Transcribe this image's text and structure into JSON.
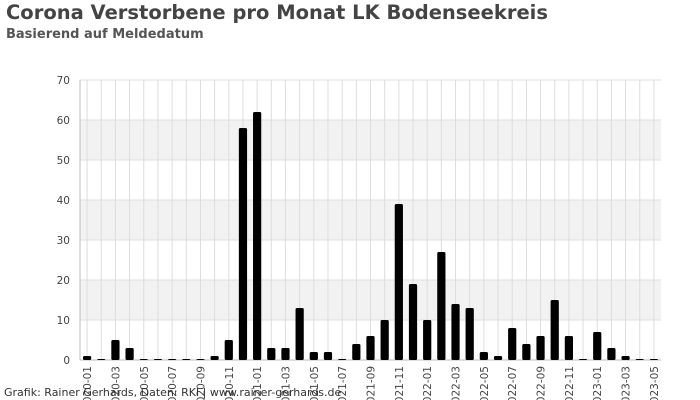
{
  "title": "Corona Verstorbene pro Monat LK Bodenseekreis",
  "subtitle": "Basierend auf Meldedatum",
  "credit": "Grafik: Rainer Gerhards, Daten: RKI | www.rainer-gerhards.de",
  "colors": {
    "bar": "#000000",
    "band": "#f2f2f2",
    "grid": "#dddddd"
  },
  "chart_data": {
    "type": "bar",
    "title": "Corona Verstorbene pro Monat LK Bodenseekreis",
    "subtitle": "Basierend auf Meldedatum",
    "xlabel": "",
    "ylabel": "",
    "ylim": [
      0,
      70
    ],
    "yticks": [
      0,
      10,
      20,
      30,
      40,
      50,
      60,
      70
    ],
    "grid": true,
    "legend": "none",
    "categories": [
      "2020-01",
      "2020-02",
      "2020-03",
      "2020-04",
      "2020-05",
      "2020-06",
      "2020-07",
      "2020-08",
      "2020-09",
      "2020-10",
      "2020-11",
      "2020-12",
      "2021-01",
      "2021-02",
      "2021-03",
      "2021-04",
      "2021-05",
      "2021-06",
      "2021-07",
      "2021-08",
      "2021-09",
      "2021-10",
      "2021-11",
      "2021-12",
      "2022-01",
      "2022-02",
      "2022-03",
      "2022-04",
      "2022-05",
      "2022-06",
      "2022-07",
      "2022-08",
      "2022-09",
      "2022-10",
      "2022-11",
      "2022-12",
      "2023-01",
      "2023-02",
      "2023-03",
      "2023-04",
      "2023-05"
    ],
    "tick_labels": [
      "2020-01",
      "2020-03",
      "2020-05",
      "2020-07",
      "2020-09",
      "2020-11",
      "2021-01",
      "2021-03",
      "2021-05",
      "2021-07",
      "2021-09",
      "2021-11",
      "2022-01",
      "2022-03",
      "2022-05",
      "2022-07",
      "2022-09",
      "2022-11",
      "2023-01",
      "2023-03",
      "2023-05"
    ],
    "values": [
      1,
      0,
      5,
      3,
      0,
      0,
      0,
      0,
      0,
      1,
      5,
      58,
      62,
      3,
      3,
      13,
      2,
      2,
      0,
      4,
      6,
      10,
      39,
      19,
      10,
      27,
      14,
      13,
      2,
      1,
      8,
      4,
      6,
      15,
      6,
      0,
      7,
      3,
      1,
      0,
      0
    ]
  }
}
